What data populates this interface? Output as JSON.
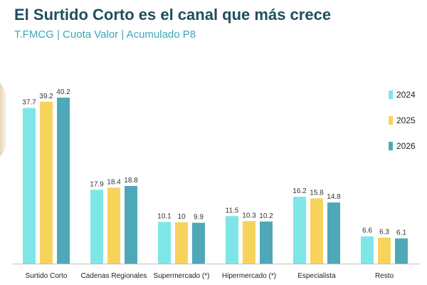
{
  "header": {
    "title": "El Surtido Corto es el canal que más crece",
    "subtitle": "T.FMCG | Cuota Valor | Acumulado P8"
  },
  "colors": {
    "2024": "#7fe6e8",
    "2025": "#f7d35c",
    "2026": "#4fa8b8",
    "label": "#333333",
    "axis": "#bfbfbf"
  },
  "chart_data": {
    "type": "bar",
    "title": "El Surtido Corto es el canal que más crece",
    "subtitle": "T.FMCG | Cuota Valor | Acumulado P8",
    "xlabel": "",
    "ylabel": "",
    "ylim": [
      0,
      40.2
    ],
    "grid": false,
    "legend_position": "right",
    "categories": [
      "Surtido Corto",
      "Cadenas Regionales",
      "Supermercado (*)",
      "Hipermercado (*)",
      "Especialista",
      "Resto"
    ],
    "series": [
      {
        "name": "2024",
        "values": [
          37.7,
          17.9,
          10.1,
          11.5,
          16.2,
          6.6
        ]
      },
      {
        "name": "2025",
        "values": [
          39.2,
          18.4,
          10,
          10.3,
          15.8,
          6.3
        ]
      },
      {
        "name": "2026",
        "values": [
          40.2,
          18.8,
          9.9,
          10.2,
          14.8,
          6.1
        ]
      }
    ]
  }
}
